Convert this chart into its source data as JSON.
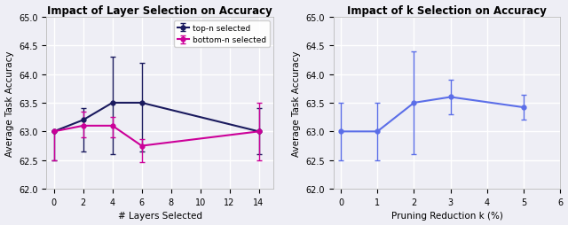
{
  "left": {
    "title": "Impact of Layer Selection on Accuracy",
    "xlabel": "# Layers Selected",
    "ylabel": "Average Task Accuracy",
    "xlim": [
      -0.5,
      15
    ],
    "ylim": [
      62.0,
      65.0
    ],
    "yticks": [
      62.0,
      62.5,
      63.0,
      63.5,
      64.0,
      64.5,
      65.0
    ],
    "xticks": [
      0,
      2,
      4,
      6,
      8,
      10,
      12,
      14
    ],
    "top_n": {
      "x": [
        0,
        2,
        4,
        6,
        14
      ],
      "y": [
        63.0,
        63.2,
        63.5,
        63.5,
        63.0
      ],
      "yerr_low": [
        0.5,
        0.55,
        0.9,
        0.85,
        0.4
      ],
      "yerr_high": [
        0.0,
        0.2,
        0.8,
        0.7,
        0.4
      ],
      "color": "#1a1a5e",
      "label": "top-n selected"
    },
    "bottom_n": {
      "x": [
        0,
        2,
        4,
        6,
        14
      ],
      "y": [
        63.0,
        63.1,
        63.1,
        62.75,
        63.0
      ],
      "yerr_low": [
        0.5,
        0.2,
        0.2,
        0.28,
        0.5
      ],
      "yerr_high": [
        0.0,
        0.25,
        0.15,
        0.12,
        0.5
      ],
      "color": "#cc0099",
      "label": "bottom-n selected"
    }
  },
  "right": {
    "title": "Impact of k Selection on Accuracy",
    "xlabel": "Pruning Reduction k (%)",
    "ylabel": "Average Task Accuracy",
    "xlim": [
      -0.2,
      6
    ],
    "ylim": [
      62.0,
      65.0
    ],
    "yticks": [
      62.0,
      62.5,
      63.0,
      63.5,
      64.0,
      64.5,
      65.0
    ],
    "xticks": [
      0,
      1,
      2,
      3,
      4,
      5,
      6
    ],
    "series": {
      "x": [
        0,
        1,
        2,
        3,
        5
      ],
      "y": [
        63.0,
        63.0,
        63.5,
        63.6,
        63.42
      ],
      "yerr_low": [
        0.5,
        0.5,
        0.9,
        0.3,
        0.22
      ],
      "yerr_high": [
        0.5,
        0.5,
        0.9,
        0.3,
        0.22
      ],
      "color": "#5b6ee8"
    }
  },
  "background_color": "#eeeef5",
  "grid_color": "#ffffff",
  "title_fontsize": 8.5,
  "label_fontsize": 7.5,
  "tick_fontsize": 7
}
